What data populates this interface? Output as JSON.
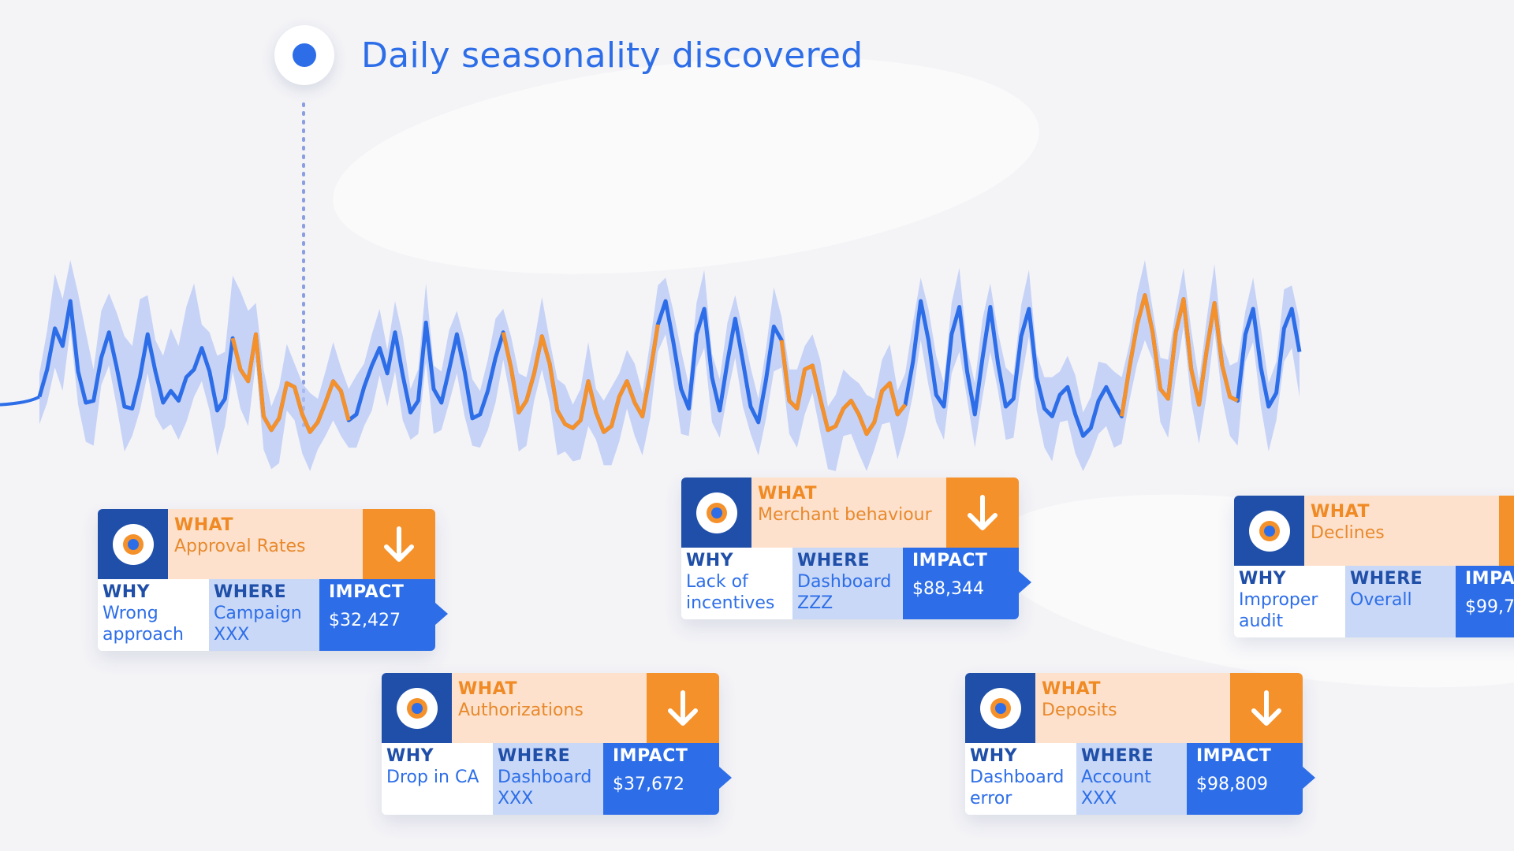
{
  "headline": "Daily seasonality discovered",
  "colors": {
    "line": "#2d6ee8",
    "highlight": "#f5912b",
    "band": "#b3c5f5",
    "what_bg": "#fde1cc",
    "impact_bg": "#2d6ee8",
    "icon_bg": "#1f4fa8"
  },
  "chart_data": {
    "type": "line",
    "title": "Daily seasonality discovered",
    "xlabel": "",
    "ylabel": "",
    "axes_visible": false,
    "grid": false,
    "series": [
      {
        "values": [
          30,
          44,
          65,
          56,
          79,
          43,
          27,
          28,
          50,
          63,
          45,
          25,
          24,
          40,
          62,
          43,
          27,
          33,
          28,
          40,
          44,
          55,
          43,
          23,
          29,
          60,
          44,
          38,
          62,
          20,
          13,
          19,
          37,
          35,
          21,
          12,
          17,
          27,
          38,
          33,
          18,
          21,
          35,
          46,
          55,
          42,
          63,
          41,
          22,
          28,
          68,
          34,
          27,
          44,
          62,
          43,
          19,
          21,
          33,
          50,
          63,
          45,
          22,
          28,
          42,
          61,
          47,
          23,
          16,
          14,
          18,
          38,
          22,
          12,
          15,
          30,
          38,
          27,
          20,
          42,
          67,
          79,
          58,
          34,
          24,
          62,
          75,
          40,
          23,
          48,
          70,
          48,
          25,
          17,
          39,
          66,
          59,
          28,
          24,
          44,
          46,
          29,
          13,
          15,
          24,
          28,
          21,
          11,
          17,
          33,
          37,
          21,
          26,
          48,
          79,
          59,
          31,
          25,
          62,
          76,
          43,
          21,
          50,
          76,
          47,
          25,
          29,
          61,
          75,
          40,
          24,
          20,
          31,
          35,
          21,
          10,
          14,
          28,
          35,
          27,
          20,
          45,
          67,
          82,
          63,
          34,
          29,
          63,
          80,
          44,
          26,
          54,
          78,
          46,
          30,
          28,
          62,
          75,
          45,
          25,
          32,
          65,
          75,
          53
        ]
      }
    ],
    "highlight_ranges": [
      [
        25,
        40
      ],
      [
        60,
        80
      ],
      [
        96,
        112
      ],
      [
        140,
        155
      ],
      [
        180,
        197
      ],
      [
        228,
        246
      ]
    ],
    "annotation": {
      "label": "Daily seasonality discovered",
      "at_index": 30
    }
  },
  "cards": [
    {
      "icon": "network-icon",
      "what_label": "WHAT",
      "what": "Approval Rates",
      "trend_icon": "arrow-down-icon",
      "why_label": "WHY",
      "why": "Wrong approach",
      "where_label": "WHERE",
      "where": "Campaign XXX",
      "impact_label": "IMPACT",
      "impact": "$32,427"
    },
    {
      "icon": "store-icon",
      "what_label": "WHAT",
      "what": "Merchant behaviour",
      "trend_icon": "arrow-down-icon",
      "why_label": "WHY",
      "why": "Lack of incentives",
      "where_label": "WHERE",
      "where": "Dashboard ZZZ",
      "impact_label": "IMPACT",
      "impact": "$88,344"
    },
    {
      "icon": "user-icon",
      "what_label": "WHAT",
      "what": "Declines",
      "trend_icon": "arrow-down-icon",
      "why_label": "WHY",
      "why": "Improper audit",
      "where_label": "WHERE",
      "where": "Overall",
      "impact_label": "IMPA",
      "impact": "$99,7"
    },
    {
      "icon": "chat-icon",
      "what_label": "WHAT",
      "what": "Authorizations",
      "trend_icon": "arrow-down-icon",
      "why_label": "WHY",
      "why": "Drop in CA",
      "where_label": "WHERE",
      "where": "Dashboard XXX",
      "impact_label": "IMPACT",
      "impact": "$37,672"
    },
    {
      "icon": "signal-icon",
      "what_label": "WHAT",
      "what": "Deposits",
      "trend_icon": "arrow-down-icon",
      "why_label": "WHY",
      "why": "Dashboard error",
      "where_label": "WHERE",
      "where": "Account XXX",
      "impact_label": "IMPACT",
      "impact": "$98,809"
    }
  ]
}
